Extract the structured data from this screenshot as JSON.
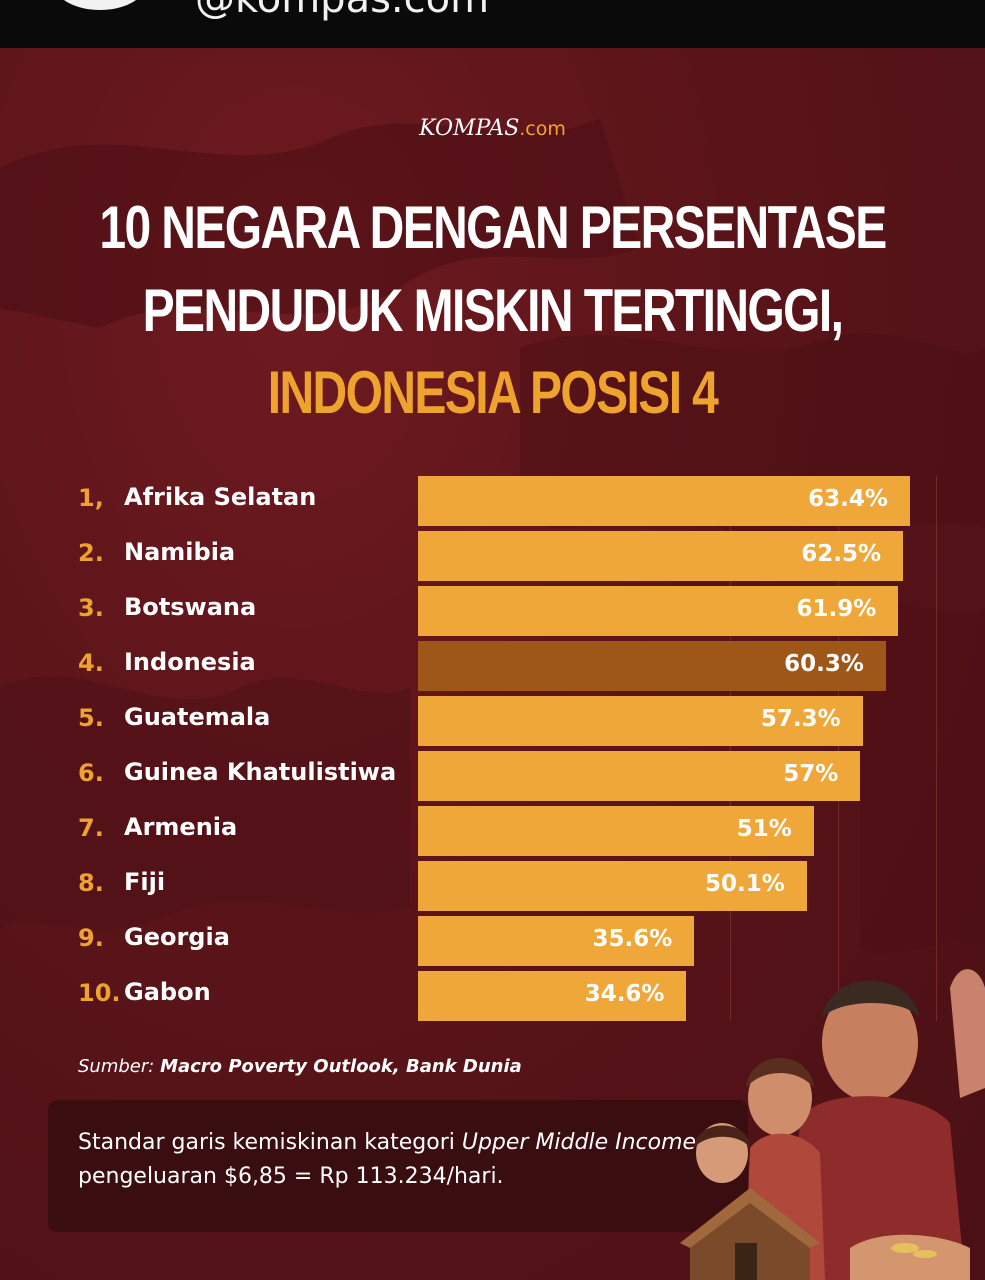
{
  "header": {
    "handle": "@kompas.com"
  },
  "brand": {
    "name": "KOMPAS",
    "suffix": ".com"
  },
  "title": {
    "line1": "10 NEGARA DENGAN PERSENTASE",
    "line2": "PENDUDUK MISKIN TERTINGGI,",
    "line3": "INDONESIA POSISI 4"
  },
  "chart_data": {
    "type": "bar",
    "orientation": "horizontal",
    "ranks": [
      "1,",
      "2.",
      "3.",
      "4.",
      "5.",
      "6.",
      "7.",
      "8.",
      "9.",
      "10."
    ],
    "categories": [
      "Afrika Selatan",
      "Namibia",
      "Botswana",
      "Indonesia",
      "Guatemala",
      "Guinea Khatulistiwa",
      "Armenia",
      "Fiji",
      "Georgia",
      "Gabon"
    ],
    "values": [
      63.4,
      62.5,
      61.9,
      60.3,
      57.3,
      57,
      51,
      50.1,
      35.6,
      34.6
    ],
    "labels": [
      "63.4%",
      "62.5%",
      "61.9%",
      "60.3%",
      "57.3%",
      "57%",
      "51%",
      "50.1%",
      "35.6%",
      "34.6%"
    ],
    "highlight": "Indonesia",
    "colors": {
      "bar": "#f0a73a",
      "highlight": "#9e5619"
    },
    "grid": true
  },
  "source": {
    "prefix": "Sumber:",
    "text": "Macro Poverty Outlook, Bank Dunia"
  },
  "note": {
    "part1": "Standar garis kemiskinan kategori ",
    "italic1": "Upper Middle",
    "italic2": "Income:",
    "part2": " pengeluaran $6,85 = Rp 113.234/hari."
  }
}
